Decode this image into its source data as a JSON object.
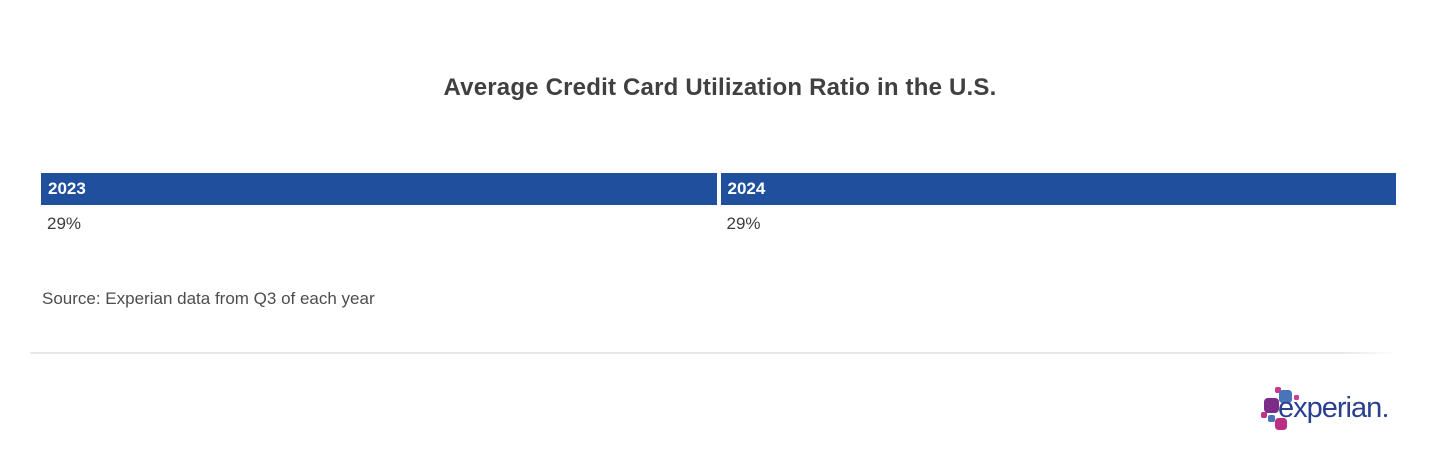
{
  "title": "Average Credit Card Utilization Ratio in the U.S.",
  "table": {
    "columns": [
      {
        "year": "2023",
        "value": "29%"
      },
      {
        "year": "2024",
        "value": "29%"
      }
    ]
  },
  "source": "Source: Experian data from Q3 of each year",
  "logo": {
    "brand": "experian"
  },
  "colors": {
    "header_bg": "#204f9e",
    "header_text": "#ffffff",
    "title_text": "#404040",
    "value_text": "#3d3d3d",
    "source_text": "#4d4d4d",
    "divider": "#e8e8e8",
    "logo_wordmark": "#2b3f91",
    "logo_blue": "#4a74ba",
    "logo_purple": "#7c2b88",
    "logo_magenta": "#bd2f83",
    "logo_pink": "#cc4196"
  },
  "chart_data": {
    "type": "table",
    "title": "Average Credit Card Utilization Ratio in the U.S.",
    "categories": [
      "2023",
      "2024"
    ],
    "values": [
      29,
      29
    ],
    "unit": "%",
    "source": "Source: Experian data from Q3 of each year",
    "layout": "two-column header row with single value row, header highlighted in blue"
  }
}
